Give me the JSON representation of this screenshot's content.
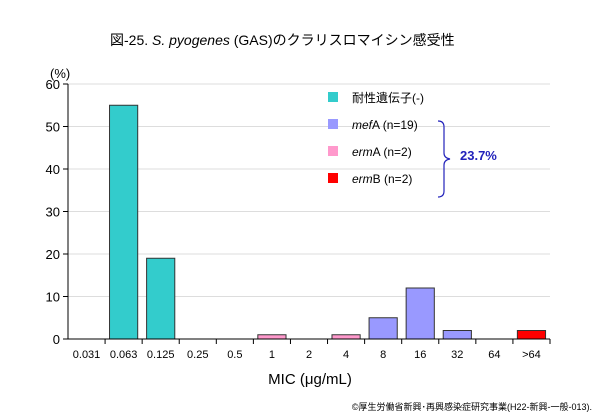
{
  "chart_data": {
    "type": "bar",
    "title_prefix": "図-25. ",
    "title_species": "S. pyogenes",
    "title_suffix": " (GAS)のクラリスロマイシン感受性",
    "ylabel": "(%)",
    "xlabel": "MIC (μg/mL)",
    "ylim": [
      0,
      60
    ],
    "yticks": [
      0,
      10,
      20,
      30,
      40,
      50,
      60
    ],
    "grid": true,
    "categories": [
      "0.031",
      "0.063",
      "0.125",
      "0.25",
      "0.5",
      "1",
      "2",
      "4",
      "8",
      "16",
      "32",
      "64",
      ">64"
    ],
    "series": [
      {
        "name": "耐性遺伝子(-)",
        "gene": "",
        "suffix": "耐性遺伝子(-)",
        "color": "#33cccc",
        "values": [
          0,
          55,
          19,
          0,
          0,
          0,
          0,
          0,
          0,
          0,
          0,
          0,
          0
        ]
      },
      {
        "name": "mefA (n=19)",
        "gene": "mef",
        "suffix": "A (n=19)",
        "color": "#9999ff",
        "values": [
          0,
          0,
          0,
          0,
          0,
          0,
          0,
          0,
          5,
          12,
          2,
          0,
          0
        ]
      },
      {
        "name": "ermA (n=2)",
        "gene": "erm",
        "suffix": "A (n=2)",
        "color": "#ff99cc",
        "values": [
          0,
          0,
          0,
          0,
          0,
          1,
          0,
          1,
          0,
          0,
          0,
          0,
          0
        ]
      },
      {
        "name": "ermB (n=2)",
        "gene": "erm",
        "suffix": "B (n=2)",
        "color": "#ff0000",
        "values": [
          0,
          0,
          0,
          0,
          0,
          0,
          0,
          0,
          0,
          0,
          0,
          0,
          2
        ]
      }
    ],
    "legend_position": "top-right",
    "annotation": "23.7%",
    "annotation_color": "#2222bb"
  },
  "footer": "©厚生労働省新興･再興感染症研究事業(H22-新興-一般-013)."
}
